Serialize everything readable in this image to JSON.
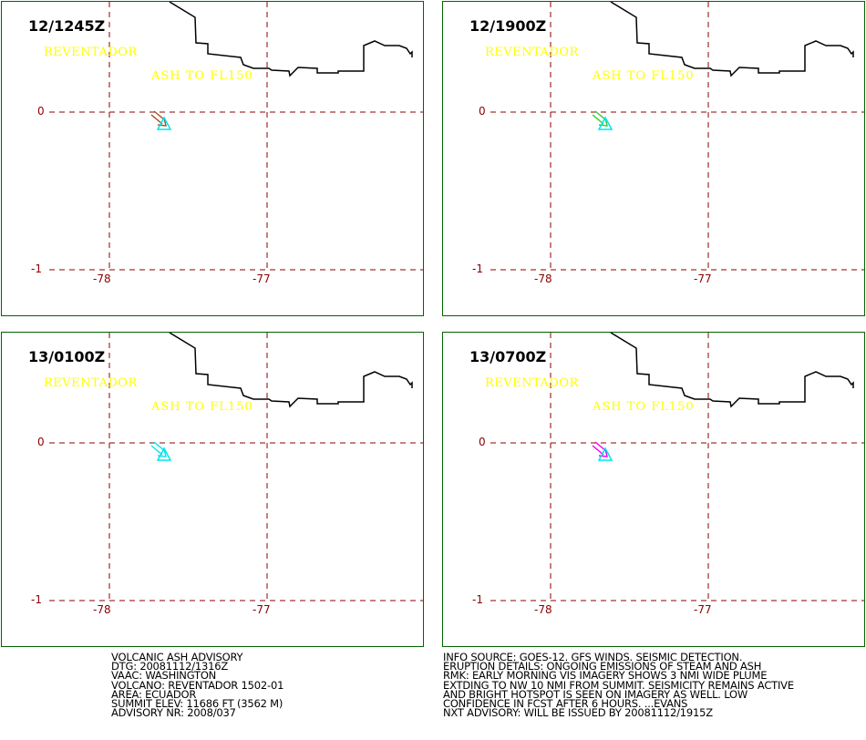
{
  "panels": [
    {
      "time": "12/1245Z",
      "volcano": "REVENTADOR",
      "ash_label": "ASH TO FL150",
      "arrow_color": "#a0522d"
    },
    {
      "time": "12/1900Z",
      "volcano": "REVENTADOR",
      "ash_label": "ASH TO FL150",
      "arrow_color": "#33cc33"
    },
    {
      "time": "13/0100Z",
      "volcano": "REVENTADOR",
      "ash_label": "ASH TO FL150",
      "arrow_color": "#00e5ee"
    },
    {
      "time": "13/0700Z",
      "volcano": "REVENTADOR",
      "ash_label": "ASH TO FL150",
      "arrow_color": "#ee00ee"
    }
  ],
  "axes": {
    "lat_ticks": [
      "0",
      "-1"
    ],
    "lon_ticks": [
      "-78",
      "-77"
    ]
  },
  "colors": {
    "grid": "#8b0000",
    "coastline": "#000000",
    "label": "#ffff00",
    "volcano_marker": "#00e5ee",
    "frame": "#006400"
  },
  "advisory_left": [
    "VOLCANIC ASH ADVISORY",
    "DTG: 20081112/1316Z",
    "VAAC: WASHINGTON",
    "VOLCANO: REVENTADOR 1502-01",
    "AREA: ECUADOR",
    "SUMMIT ELEV: 11686 FT (3562 M)",
    "ADVISORY NR: 2008/037"
  ],
  "advisory_right": [
    "INFO SOURCE: GOES-12. GFS WINDS. SEISMIC DETECTION.",
    "ERUPTION DETAILS: ONGOING EMISSIONS OF STEAM AND ASH",
    "RMK: EARLY MORNING VIS IMAGERY SHOWS 3 NMI WIDE PLUME",
    "EXTDING TO NW 10 NMI FROM SUMMIT. SEISMICITY REMAINS ACTIVE",
    "AND BRIGHT HOTSPOT IS SEEN ON IMAGERY AS WELL. LOW",
    "CONFIDENCE IN FCST AFTER 6 HOURS. ...EVANS",
    "NXT ADVISORY: WILL BE ISSUED BY 20081112/1915Z"
  ]
}
